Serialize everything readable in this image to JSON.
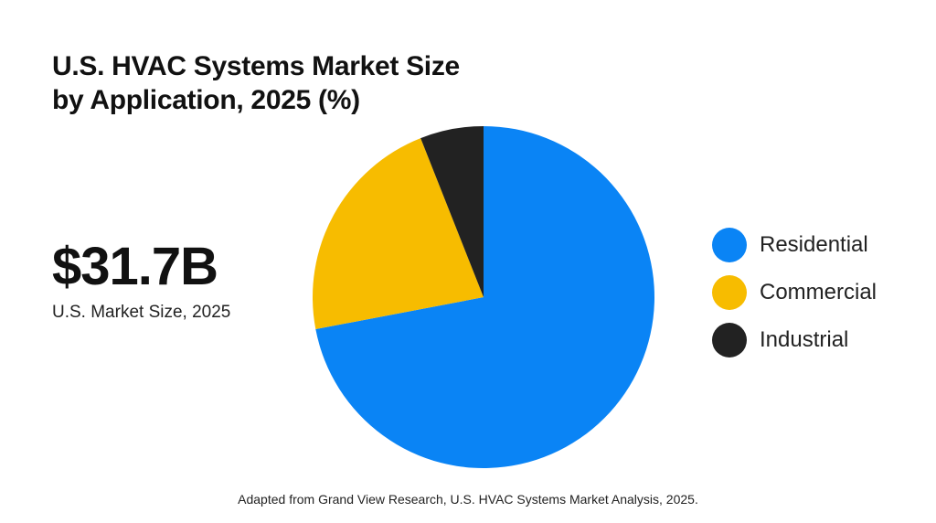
{
  "chart_data": {
    "type": "pie",
    "title_line1": "U.S. HVAC Systems Market Size",
    "title_line2": "by Application, 2025 (%)",
    "categories": [
      "Residential",
      "Commercial",
      "Industrial"
    ],
    "values": [
      72,
      22,
      6
    ],
    "colors": [
      "#0a84f5",
      "#f7bc00",
      "#222222"
    ],
    "start": "12 o'clock, clockwise",
    "legend_placement": "right"
  },
  "kpi": {
    "value": "$31.7B",
    "label": "U.S. Market Size, 2025"
  },
  "source": "Adapted from Grand View Research, U.S. HVAC Systems Market Analysis, 2025."
}
